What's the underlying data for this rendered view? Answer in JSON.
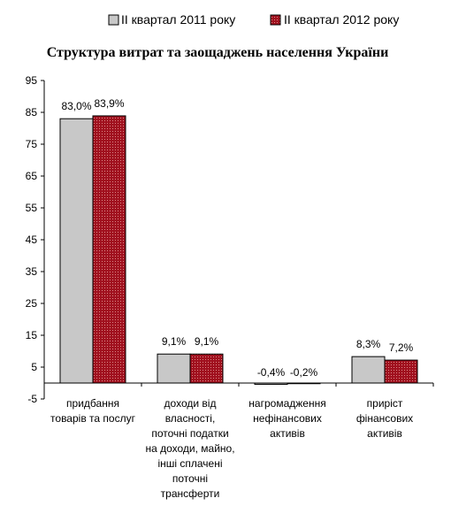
{
  "chart_data": {
    "type": "bar",
    "title": "Структура  витрат  та заощаджень  населення України",
    "legend_position": "top",
    "y_axis": {
      "ylim": [
        -5,
        95
      ],
      "ticks": [
        "95",
        "85",
        "75",
        "65",
        "55",
        "45",
        "35",
        "25",
        "15",
        "5",
        "-5"
      ]
    },
    "grid": false,
    "categories": [
      [
        "придбання",
        "товарів та послуг"
      ],
      [
        "доходи від",
        "власності,",
        "поточні податки",
        "на доходи, майно,",
        "інші сплачені",
        "поточні",
        "трансферти"
      ],
      [
        "нагромадження",
        "нефінансових",
        "активів"
      ],
      [
        "приріст",
        "фінансових",
        "активів"
      ]
    ],
    "series": [
      {
        "name": "II квартал 2011 року",
        "color": "#c8c8c8",
        "values": [
          83.0,
          9.1,
          -0.4,
          8.3
        ],
        "labels": [
          "83,0%",
          "9,1%",
          "-0,4%",
          "8,3%"
        ]
      },
      {
        "name": "II квартал 2012 року",
        "color": "#a0101e",
        "values": [
          83.9,
          9.1,
          -0.2,
          7.2
        ],
        "labels": [
          "83,9%",
          "9,1%",
          "-0,2%",
          "7,2%"
        ]
      }
    ]
  }
}
